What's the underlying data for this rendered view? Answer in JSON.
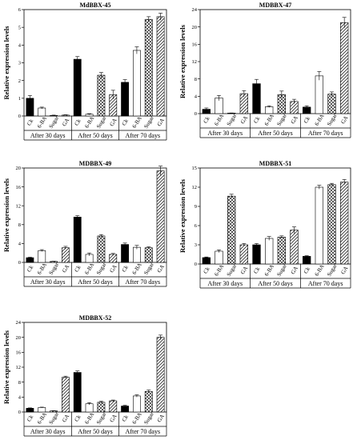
{
  "chart_data": [
    {
      "type": "bar",
      "title": "MdBBX-45",
      "ylabel": "Relative expression levels",
      "ylim": [
        0,
        6
      ],
      "yticks": [
        0,
        1,
        2,
        3,
        4,
        5,
        6
      ],
      "categories": [
        "Ck",
        "6-BA",
        "Sugar",
        "GA"
      ],
      "groups": [
        "After 30 days",
        "After 50 days",
        "After 70 days"
      ],
      "series": [
        {
          "values": [
            1.0,
            0.45,
            0.03,
            0.05
          ],
          "errors": [
            0.15,
            0.05,
            0.02,
            0.02
          ]
        },
        {
          "values": [
            3.2,
            0.1,
            2.3,
            1.2
          ],
          "errors": [
            0.15,
            0.03,
            0.15,
            0.25
          ]
        },
        {
          "values": [
            1.9,
            3.7,
            5.45,
            5.6
          ],
          "errors": [
            0.15,
            0.2,
            0.15,
            0.2
          ]
        }
      ]
    },
    {
      "type": "bar",
      "title": "MDBBX-47",
      "ylabel": "Relative expression levels",
      "ylim": [
        0,
        24
      ],
      "yticks": [
        0,
        4,
        8,
        12,
        16,
        20,
        24
      ],
      "categories": [
        "Ck",
        "6-BA",
        "Sugar",
        "GA"
      ],
      "groups": [
        "After 30 days",
        "After 50 days",
        "After 70 days"
      ],
      "series": [
        {
          "values": [
            1.0,
            3.6,
            0.1,
            4.6
          ],
          "errors": [
            0.3,
            0.6,
            0.05,
            0.7
          ]
        },
        {
          "values": [
            6.9,
            1.6,
            4.4,
            2.8
          ],
          "errors": [
            1.0,
            0.2,
            0.8,
            0.5
          ]
        },
        {
          "values": [
            1.5,
            8.7,
            4.5,
            21.0
          ],
          "errors": [
            0.3,
            1.0,
            0.5,
            1.2
          ]
        }
      ]
    },
    {
      "type": "bar",
      "title": "MDBBX-49",
      "ylabel": "Relative expression levels",
      "ylim": [
        0,
        20
      ],
      "yticks": [
        0,
        4,
        8,
        12,
        16,
        20
      ],
      "categories": [
        "Ck",
        "6-BA",
        "Sugar",
        "GA"
      ],
      "groups": [
        "After 30 days",
        "After 50 days",
        "After 70 days"
      ],
      "series": [
        {
          "values": [
            1.0,
            2.5,
            0.2,
            3.1
          ],
          "errors": [
            0.1,
            0.2,
            0.05,
            0.3
          ]
        },
        {
          "values": [
            9.6,
            1.7,
            5.6,
            1.7
          ],
          "errors": [
            0.3,
            0.3,
            0.3,
            0.2
          ]
        },
        {
          "values": [
            3.8,
            3.2,
            3.1,
            19.4
          ],
          "errors": [
            0.3,
            0.4,
            0.2,
            1.0
          ]
        }
      ]
    },
    {
      "type": "bar",
      "title": "MDBBX-51",
      "ylabel": "Relative expression levels",
      "ylim": [
        0,
        15
      ],
      "yticks": [
        0,
        3,
        6,
        9,
        12,
        15
      ],
      "categories": [
        "Ck",
        "6-BA",
        "Sugar",
        "GA"
      ],
      "groups": [
        "After 30 days",
        "After 50 days",
        "After 70 days"
      ],
      "series": [
        {
          "values": [
            1.0,
            2.0,
            10.6,
            3.0
          ],
          "errors": [
            0.1,
            0.2,
            0.3,
            0.2
          ]
        },
        {
          "values": [
            3.0,
            4.0,
            4.2,
            5.3
          ],
          "errors": [
            0.2,
            0.3,
            0.2,
            0.5
          ]
        },
        {
          "values": [
            1.2,
            12.0,
            12.4,
            12.8
          ],
          "errors": [
            0.1,
            0.3,
            0.2,
            0.4
          ]
        }
      ]
    },
    {
      "type": "bar",
      "title": "MDBBX-52",
      "ylabel": "Relative expression levels",
      "ylim": [
        0,
        24
      ],
      "yticks": [
        0,
        4,
        8,
        12,
        16,
        20,
        24
      ],
      "categories": [
        "Ck",
        "6-BA",
        "Sugar",
        "GA"
      ],
      "groups": [
        "After 30 days",
        "After 50 days",
        "After 70 days"
      ],
      "series": [
        {
          "values": [
            1.0,
            1.2,
            0.3,
            9.3
          ],
          "errors": [
            0.1,
            0.1,
            0.05,
            0.3
          ]
        },
        {
          "values": [
            10.6,
            2.2,
            2.6,
            3.0
          ],
          "errors": [
            0.4,
            0.3,
            0.3,
            0.2
          ]
        },
        {
          "values": [
            1.6,
            4.3,
            5.5,
            20.0
          ],
          "errors": [
            0.2,
            0.3,
            0.4,
            0.6
          ]
        }
      ]
    }
  ]
}
